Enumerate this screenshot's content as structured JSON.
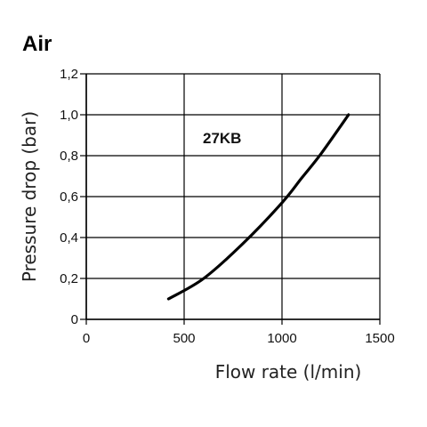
{
  "chart_data": {
    "type": "line",
    "title": "Air",
    "xlabel": "Flow rate (l/min)",
    "ylabel": "Pressure drop (bar)",
    "xlim": [
      0,
      1500
    ],
    "ylim": [
      0,
      1.2
    ],
    "x_ticks": [
      "0",
      "500",
      "1000",
      "1500"
    ],
    "y_ticks": [
      "0",
      "0,2",
      "0,4",
      "0,6",
      "0,8",
      "1,0",
      "1,2"
    ],
    "grid": true,
    "series": [
      {
        "name": "27KB",
        "color": "#000000",
        "x": [
          420,
          600,
          800,
          1000,
          1100,
          1200,
          1340
        ],
        "y": [
          0.1,
          0.2,
          0.37,
          0.57,
          0.69,
          0.81,
          1.0
        ]
      }
    ]
  }
}
